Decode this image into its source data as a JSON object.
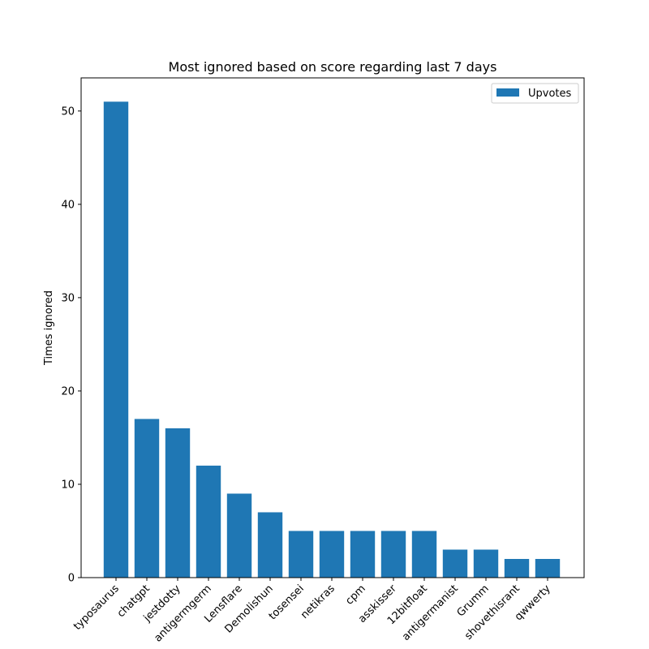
{
  "chart_data": {
    "type": "bar",
    "title": "Most ignored based on score regarding last 7 days",
    "xlabel": "",
    "ylabel": "Times ignored",
    "categories": [
      "typosaurus",
      "chatgpt",
      "jestdotty",
      "antigermgerm",
      "Lensflare",
      "Demolishun",
      "tosensei",
      "netikras",
      "cpm",
      "asskisser",
      "12bitfloat",
      "antigermanist",
      "Grumm",
      "shovethisrant",
      "qwwerty"
    ],
    "series": [
      {
        "name": "Upvotes",
        "values": [
          51,
          17,
          16,
          12,
          9,
          7,
          5,
          5,
          5,
          5,
          5,
          3,
          3,
          2,
          2
        ]
      }
    ],
    "ylim": [
      0,
      53.55
    ],
    "yticks": [
      0,
      10,
      20,
      30,
      40,
      50
    ],
    "grid": false,
    "legend": "top-right",
    "bar_color": "#1f77b4"
  }
}
